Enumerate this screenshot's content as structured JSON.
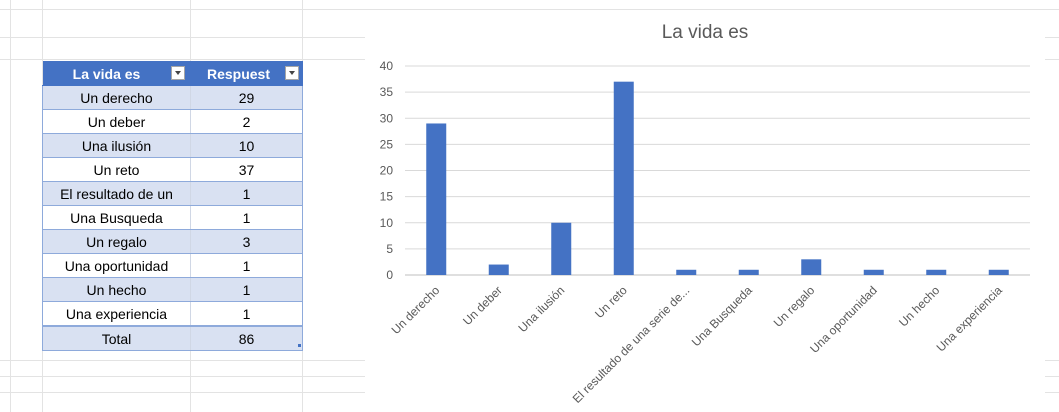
{
  "table": {
    "header": [
      "La vida es",
      "Respuest"
    ],
    "rows": [
      {
        "label": "Un derecho",
        "value": "29"
      },
      {
        "label": "Un deber",
        "value": "2"
      },
      {
        "label": "Una ilusión",
        "value": "10"
      },
      {
        "label": "Un reto",
        "value": "37"
      },
      {
        "label": "El resultado de un",
        "value": "1"
      },
      {
        "label": "Una Busqueda",
        "value": "1"
      },
      {
        "label": "Un regalo",
        "value": "3"
      },
      {
        "label": "Una oportunidad",
        "value": "1"
      },
      {
        "label": "Un hecho",
        "value": "1"
      },
      {
        "label": "Una experiencia",
        "value": "1"
      }
    ],
    "total_label": "Total",
    "total_value": "86"
  },
  "chart_data": {
    "type": "bar",
    "title": "La vida es",
    "categories": [
      "Un derecho",
      "Un deber",
      "Una ilusión",
      "Un reto",
      "El resultado de una serie de...",
      "Una Busqueda",
      "Un regalo",
      "Una oportunidad",
      "Un hecho",
      "Una experiencia"
    ],
    "values": [
      29,
      2,
      10,
      37,
      1,
      1,
      3,
      1,
      1,
      1
    ],
    "yticks": [
      0,
      5,
      10,
      15,
      20,
      25,
      30,
      35,
      40
    ],
    "ylim": [
      0,
      40
    ],
    "grid": true,
    "legend": "none",
    "bar_color": "#4472c4"
  }
}
